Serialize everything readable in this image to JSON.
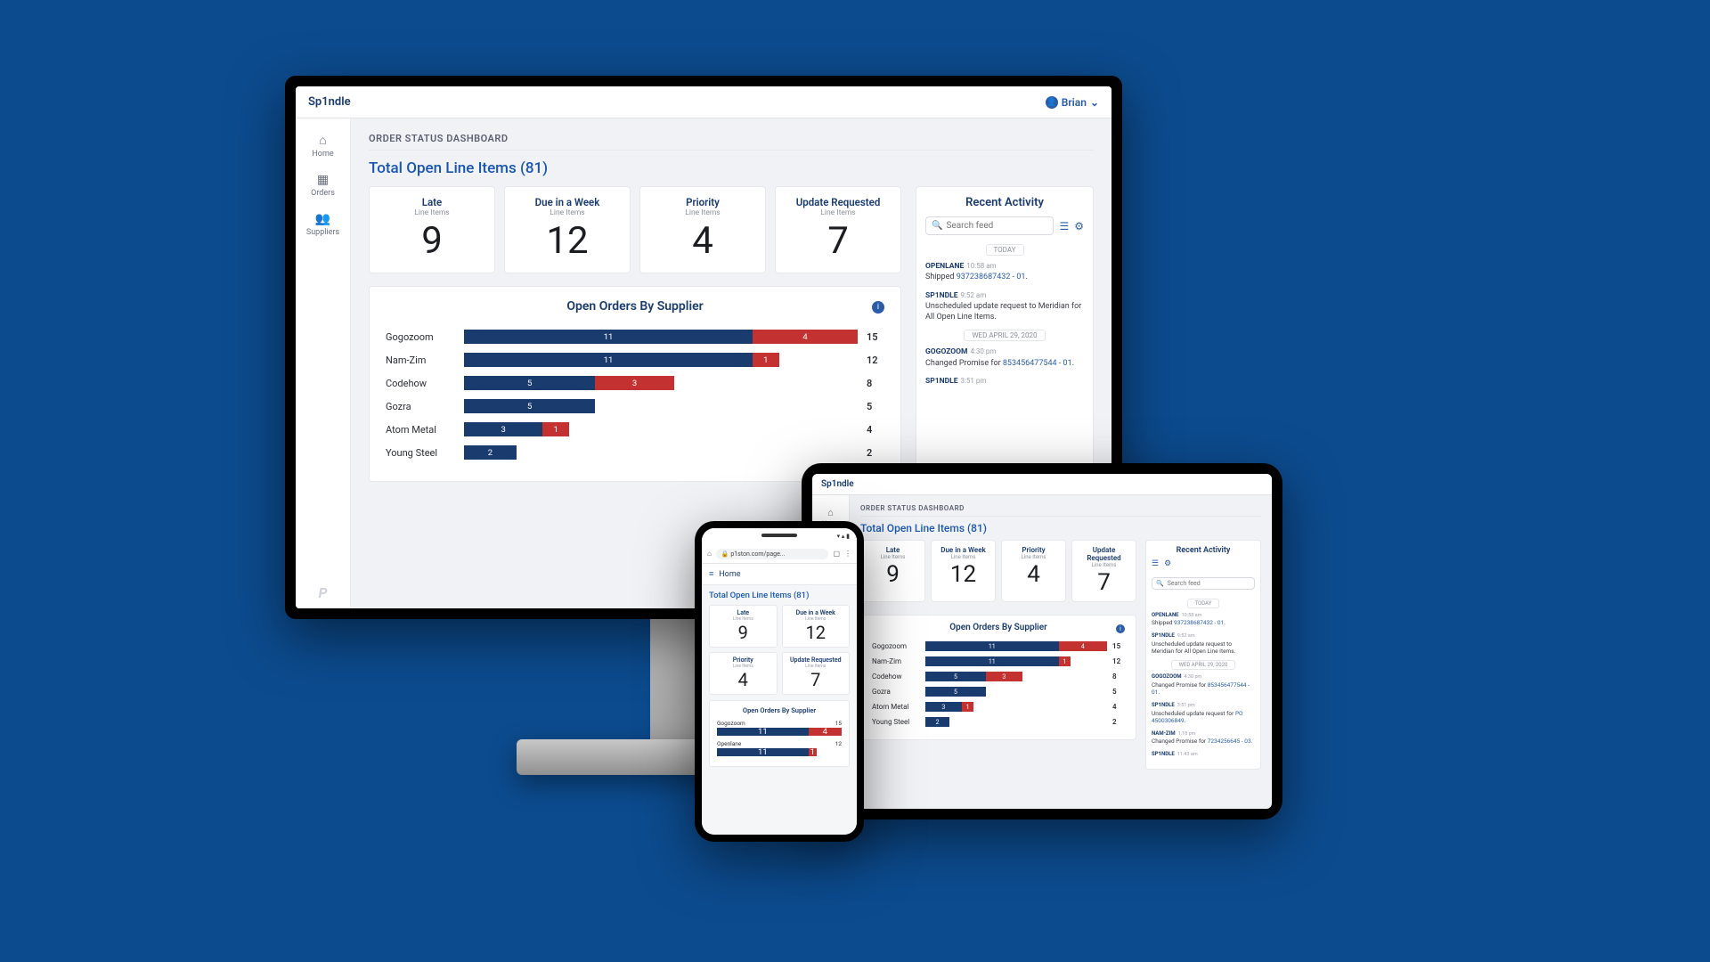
{
  "colors": {
    "page_bg": "#0c4b8e",
    "app_bg": "#f1f2f5",
    "card_bg": "#ffffff",
    "border": "#e6e8ec",
    "text_primary": "#1a3b6e",
    "text_muted": "#8a8f9a",
    "link": "#2a5ca8",
    "bar_blue": "#1a3b6e",
    "bar_red": "#c43131"
  },
  "app": {
    "brand": "Sp1ndle",
    "user_name": "Brian",
    "page_title": "ORDER STATUS DASHBOARD",
    "total_open_label": "Total Open Line Items (81)"
  },
  "sidebar": {
    "items": [
      {
        "label": "Home",
        "icon": "⌂"
      },
      {
        "label": "Orders",
        "icon": "▦"
      },
      {
        "label": "Suppliers",
        "icon": "👥"
      }
    ],
    "logo": "P"
  },
  "kpis": [
    {
      "label": "Late",
      "sub": "Line Items",
      "value": "9"
    },
    {
      "label": "Due in a Week",
      "sub": "Line Items",
      "value": "12"
    },
    {
      "label": "Priority",
      "sub": "Line Items",
      "value": "4"
    },
    {
      "label": "Update Requested",
      "sub": "Line Items",
      "value": "7"
    }
  ],
  "supplier_chart": {
    "title": "Open Orders By Supplier",
    "max": 15,
    "rows": [
      {
        "name": "Gogozoom",
        "blue": 11,
        "red": 4,
        "total": 15
      },
      {
        "name": "Nam-Zim",
        "blue": 11,
        "red": 1,
        "total": 12
      },
      {
        "name": "Codehow",
        "blue": 5,
        "red": 3,
        "total": 8
      },
      {
        "name": "Gozra",
        "blue": 5,
        "red": 0,
        "total": 5
      },
      {
        "name": "Atom Metal",
        "blue": 3,
        "red": 1,
        "total": 4
      },
      {
        "name": "Young Steel",
        "blue": 2,
        "red": 0,
        "total": 2
      }
    ]
  },
  "activity": {
    "title": "Recent Activity",
    "search_placeholder": "Search feed",
    "desktop_groups": [
      {
        "day": "TODAY",
        "items": [
          {
            "src": "OPENLANE",
            "time": "10:58 am",
            "text": "Shipped ",
            "link": "937238687432 - 01",
            "tail": "."
          },
          {
            "src": "SP1NDLE",
            "time": "9:52 am",
            "text": "Unscheduled update request to Meridian for All Open Line Items."
          }
        ]
      },
      {
        "day": "WED APRIL 29, 2020",
        "items": [
          {
            "src": "GOGOZOOM",
            "time": "4:30 pm",
            "text": "Changed Promise for ",
            "link": "853456477544 - 01",
            "tail": "."
          },
          {
            "src": "SP1NDLE",
            "time": "3:51 pm",
            "text": ""
          }
        ]
      }
    ],
    "tablet_groups": [
      {
        "day": "TODAY",
        "items": [
          {
            "src": "OPENLANE",
            "time": "10:58 am",
            "text": "Shipped ",
            "link": "937238687432 - 01",
            "tail": "."
          },
          {
            "src": "SP1NDLE",
            "time": "9:52 am",
            "text": "Unscheduled update request to Meridian for All Open Line Items."
          }
        ]
      },
      {
        "day": "WED APRIL 29, 2020",
        "items": [
          {
            "src": "GOGOZOOM",
            "time": "4:30 pm",
            "text": "Changed Promise for ",
            "link": "853456477544 - 01",
            "tail": "."
          },
          {
            "src": "SP1NDLE",
            "time": "3:51 pm",
            "text": "Unscheduled update request for ",
            "link": "PO 4500306849",
            "tail": "."
          },
          {
            "src": "NAM-ZIM",
            "time": "1:18 pm",
            "text": "Changed Promise for ",
            "link": "7234256645 - 03",
            "tail": "."
          },
          {
            "src": "SP1NDLE",
            "time": "11:43 am",
            "text": ""
          }
        ]
      }
    ]
  },
  "phone": {
    "url": "p1ston.com/page...",
    "nav_label": "Home",
    "chart_rows": [
      {
        "name": "Gogozoom",
        "blue": 11,
        "red": 4,
        "total": 15
      },
      {
        "name": "Openlane",
        "blue": 11,
        "red": 1,
        "total": 12
      }
    ]
  }
}
